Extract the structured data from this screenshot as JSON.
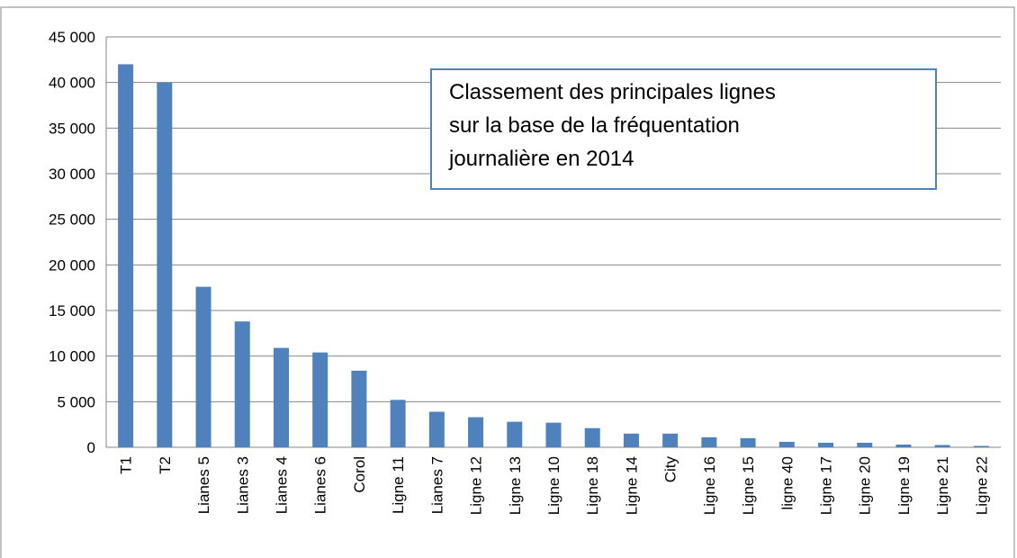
{
  "chart_data": {
    "type": "bar",
    "title": [
      "Classement des principales lignes",
      "sur la base de la fréquentation",
      "journalière en 2014"
    ],
    "categories": [
      "T1",
      "T2",
      "Lianes 5",
      "Lianes 3",
      "Lianes 4",
      "Lianes 6",
      "Corol",
      "Ligne 11",
      "Lianes 7",
      "Ligne 12",
      "Ligne 13",
      "Ligne 10",
      "Ligne 18",
      "Ligne 14",
      "City",
      "Ligne 16",
      "Ligne 15",
      "ligne 40",
      "Ligne 17",
      "Ligne 20",
      "Ligne 19",
      "Ligne 21",
      "Ligne 22"
    ],
    "values": [
      42000,
      40000,
      17600,
      13800,
      10900,
      10400,
      8400,
      5200,
      3900,
      3300,
      2800,
      2700,
      2100,
      1500,
      1500,
      1100,
      1000,
      600,
      500,
      500,
      300,
      250,
      150
    ],
    "color": "#4f81bd",
    "ylim": [
      0,
      45000
    ],
    "yticks": [
      0,
      {
        "value": 5000,
        "label": "5 000"
      },
      {
        "value": 10000,
        "label": "10 000"
      },
      {
        "value": 15000,
        "label": "15 000"
      },
      {
        "value": 20000,
        "label": "20 000"
      },
      {
        "value": 25000,
        "label": "25 000"
      },
      {
        "value": 30000,
        "label": "30 000"
      },
      {
        "value": 35000,
        "label": "35 000"
      },
      {
        "value": 40000,
        "label": "40 000"
      },
      {
        "value": 45000,
        "label": "45 000"
      }
    ],
    "grid": true
  }
}
